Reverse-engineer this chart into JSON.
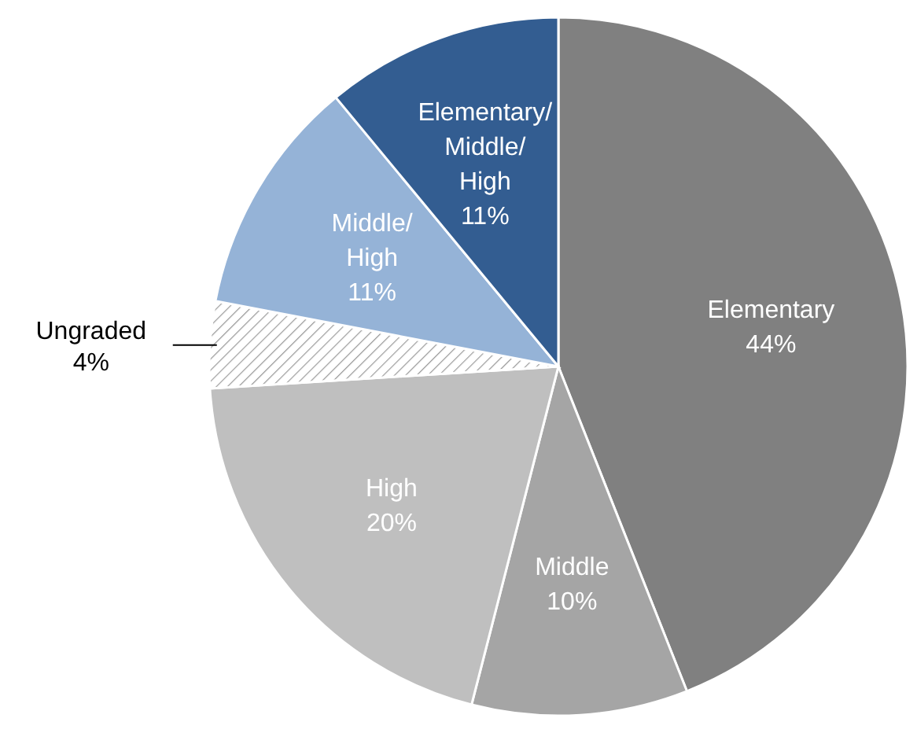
{
  "chart_data": {
    "type": "pie",
    "categories": [
      "Elementary",
      "Middle",
      "High",
      "Ungraded",
      "Middle/High",
      "Elementary/Middle/High"
    ],
    "values": [
      44,
      10,
      20,
      4,
      11,
      11
    ],
    "value_labels": [
      "44%",
      "10%",
      "20%",
      "4%",
      "11%",
      "11%"
    ],
    "colors": [
      "#808080",
      "#a5a5a5",
      "#bfbfbf",
      "#ffffff",
      "#95b3d7",
      "#335d91"
    ]
  }
}
